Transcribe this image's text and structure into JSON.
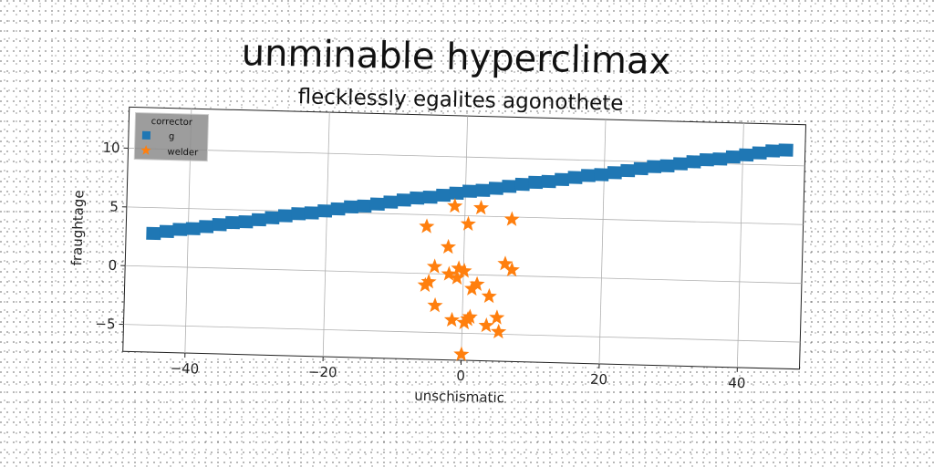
{
  "chart_data": {
    "type": "scatter",
    "title": "unminable hyperclimax",
    "subtitle": "flecklessly egalites agonothete",
    "xlabel": "unschismatic",
    "ylabel": "fraughtage",
    "xlim": [
      -49,
      49
    ],
    "ylim": [
      -7.3,
      13.5
    ],
    "xticks": [
      -40,
      -20,
      0,
      20,
      40
    ],
    "yticks": [
      -5,
      0,
      5,
      10
    ],
    "grid": true,
    "legend": {
      "title": "corrector",
      "placement": "top-left"
    },
    "series": [
      {
        "name": "g",
        "marker": "square",
        "color": "#1f77b4",
        "x": [
          -45.0,
          -43.1,
          -41.2,
          -39.3,
          -37.4,
          -35.5,
          -33.6,
          -31.7,
          -29.8,
          -27.9,
          -26.0,
          -24.1,
          -22.2,
          -20.3,
          -18.4,
          -16.5,
          -14.6,
          -12.7,
          -10.8,
          -8.9,
          -7.0,
          -5.1,
          -3.2,
          -1.3,
          0.6,
          2.5,
          4.4,
          6.3,
          8.2,
          10.1,
          12.0,
          13.9,
          15.8,
          17.7,
          19.6,
          21.5,
          23.4,
          25.3,
          27.2,
          29.1,
          31.0,
          32.9,
          34.8,
          36.7,
          38.6,
          40.5,
          42.4,
          44.3,
          46.2
        ],
        "y": [
          2.8,
          3.0,
          3.2,
          3.3,
          3.5,
          3.7,
          3.9,
          4.0,
          4.2,
          4.4,
          4.6,
          4.8,
          4.9,
          5.1,
          5.3,
          5.5,
          5.6,
          5.8,
          6.0,
          6.2,
          6.4,
          6.5,
          6.7,
          6.9,
          7.1,
          7.2,
          7.4,
          7.6,
          7.8,
          8.0,
          8.1,
          8.3,
          8.5,
          8.7,
          8.8,
          9.0,
          9.2,
          9.4,
          9.6,
          9.7,
          9.9,
          10.1,
          10.3,
          10.4,
          10.6,
          10.8,
          11.0,
          11.2,
          11.3
        ]
      },
      {
        "name": "welder",
        "marker": "star",
        "color": "#ff7f0e",
        "x": [
          -1.5,
          2.3,
          0.5,
          -5.5,
          6.8,
          -2.3,
          6.0,
          7.0,
          -4.2,
          -0.7,
          0.1,
          -2.1,
          -0.9,
          1.3,
          -5.0,
          -5.5,
          2.0,
          3.8,
          -4.0,
          -1.5,
          0.8,
          1.1,
          0.3,
          5.0,
          3.5,
          5.3,
          0.0
        ],
        "y": [
          5.8,
          5.7,
          4.3,
          4.0,
          4.8,
          2.3,
          1.0,
          0.5,
          0.6,
          0.5,
          0.3,
          0.0,
          -0.3,
          -1.2,
          -0.7,
          -1.0,
          -0.8,
          -1.8,
          -2.7,
          -3.9,
          -3.8,
          -3.6,
          -4.1,
          -3.6,
          -4.3,
          -4.8,
          -6.8
        ]
      }
    ]
  }
}
